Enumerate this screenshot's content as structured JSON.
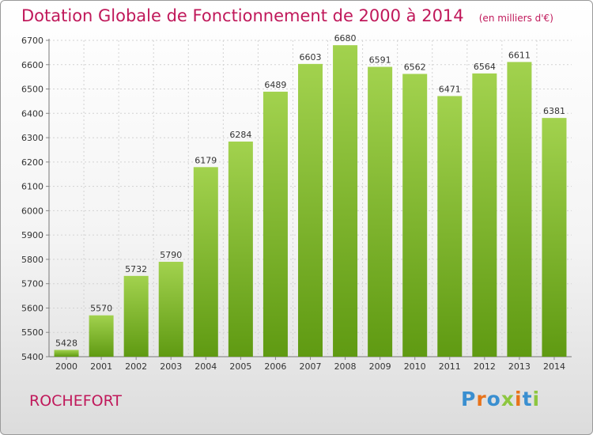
{
  "header": {
    "title": "Dotation Globale de Fonctionnement de 2000 à 2014",
    "subtitle": "(en milliers d'€)"
  },
  "footer": {
    "city": "ROCHEFORT",
    "logo": "Proxiti"
  },
  "colors": {
    "title": "#c0185a",
    "bar_top": "#a2d24e",
    "bar_bottom": "#5f9a12",
    "logo_letters": [
      "#3a8fd0",
      "#e8731a",
      "#3a8fd0",
      "#8dc63f",
      "#e8731a",
      "#3a8fd0",
      "#8dc63f"
    ]
  },
  "chart_data": {
    "type": "bar",
    "categories": [
      "2000",
      "2001",
      "2002",
      "2003",
      "2004",
      "2005",
      "2006",
      "2007",
      "2008",
      "2009",
      "2010",
      "2011",
      "2012",
      "2013",
      "2014"
    ],
    "values": [
      5428,
      5570,
      5732,
      5790,
      6179,
      6284,
      6489,
      6603,
      6680,
      6591,
      6562,
      6471,
      6564,
      6611,
      6381
    ],
    "title": "Dotation Globale de Fonctionnement de 2000 à 2014",
    "ylim": [
      5400,
      6700
    ],
    "yticks": [
      5400,
      5500,
      5600,
      5700,
      5800,
      5900,
      6000,
      6100,
      6200,
      6300,
      6400,
      6500,
      6600,
      6700
    ],
    "grid": true
  }
}
